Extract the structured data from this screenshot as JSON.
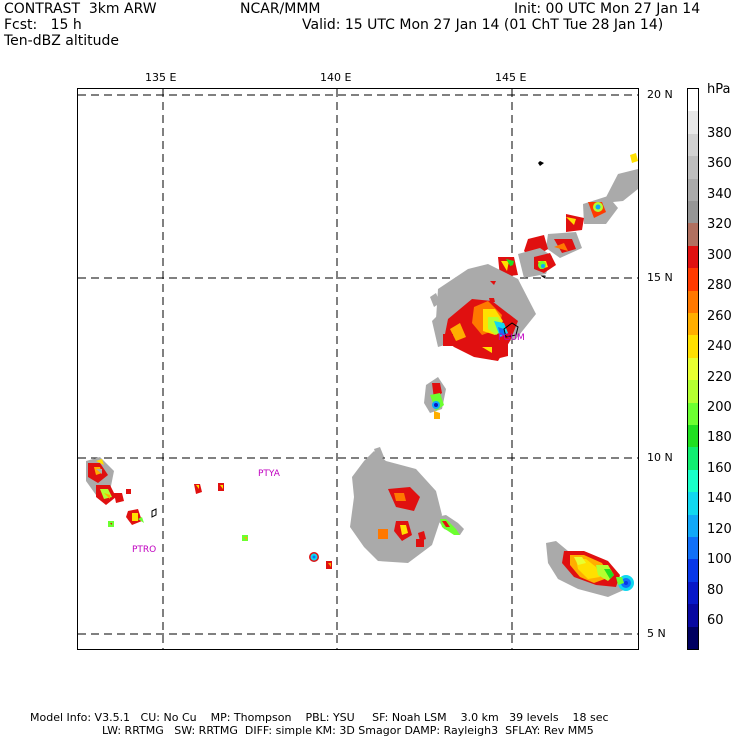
{
  "header": {
    "line1_left": "CONTRAST  3km ARW",
    "line1_center": "NCAR/MMM",
    "line1_right": "Init: 00 UTC Mon 27 Jan 14",
    "line2_left": "Fcst:   15 h",
    "line2_right": "Valid: 15 UTC Mon 27 Jan 14 (01 ChT Tue 28 Jan 14)",
    "line3_left": "Ten-dBZ altitude"
  },
  "map": {
    "lon_labels": [
      "135 E",
      "140 E",
      "145 E"
    ],
    "lat_labels": [
      "20 N",
      "15 N",
      "10 N",
      "5 N"
    ],
    "stations": [
      "PTYA",
      "PTRO",
      "PGUM"
    ]
  },
  "colorbar": {
    "unit": "hPa",
    "labels": [
      "380",
      "360",
      "340",
      "320",
      "300",
      "280",
      "260",
      "240",
      "220",
      "200",
      "180",
      "160",
      "140",
      "120",
      "100",
      "80",
      "60"
    ],
    "colors": [
      "#ffffff",
      "#e8e8e8",
      "#d2d2d2",
      "#bebebe",
      "#aaaaaa",
      "#969696",
      "#b07060",
      "#e01010",
      "#ff3a00",
      "#ff7800",
      "#ffae00",
      "#ffe000",
      "#e8ff30",
      "#b4ff30",
      "#6cff30",
      "#20e020",
      "#10ee70",
      "#18ffc8",
      "#10d8f0",
      "#10a8f8",
      "#1070f8",
      "#0838e8",
      "#0818c8",
      "#0808a0",
      "#000060"
    ]
  },
  "footer": {
    "line1": "Model Info: V3.5.1   CU: No Cu    MP: Thompson    PBL: YSU     SF: Noah LSM    3.0 km   39 levels    18 sec",
    "line2": "LW: RRTMG   SW: RRTMG  DIFF: simple KM: 3D Smagor DAMP: Rayleigh3  SFLAY: Rev MM5"
  }
}
